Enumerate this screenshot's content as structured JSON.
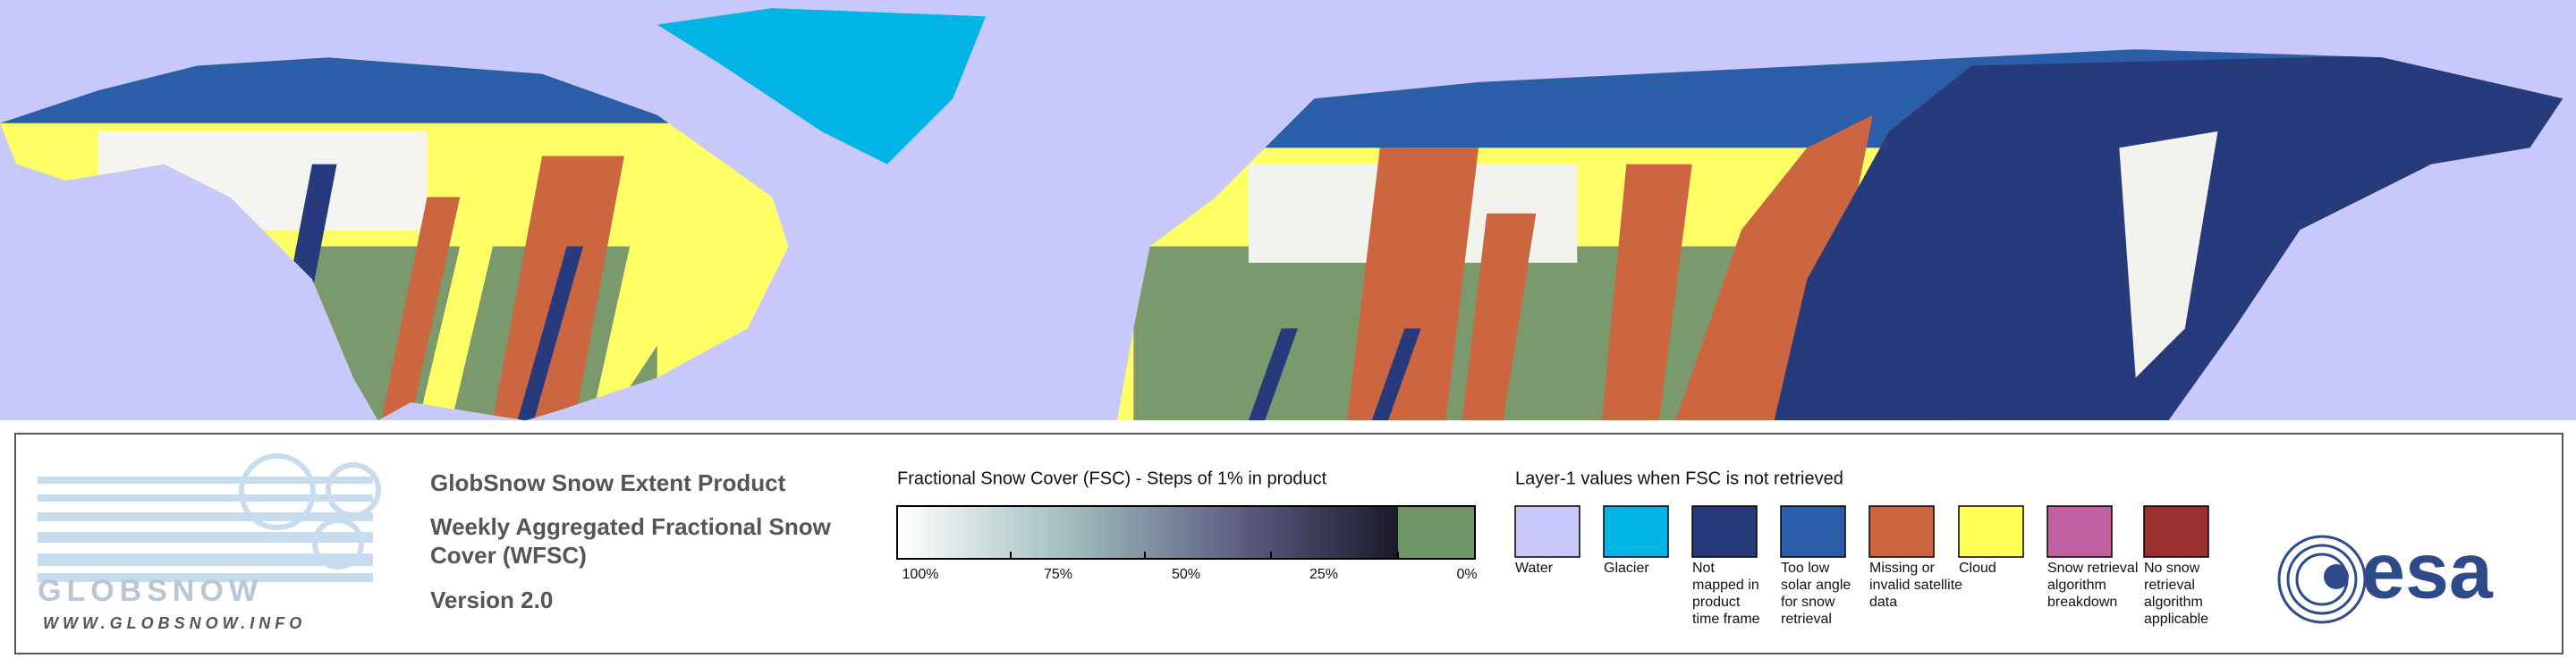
{
  "logo": {
    "name": "GLOBSNOW",
    "url": "WWW.GLOBSNOW.INFO"
  },
  "product": {
    "title": "GlobSnow Snow Extent Product",
    "subtitle_lines": [
      "Weekly Aggregated Fractional Snow",
      "Cover (WFSC)"
    ],
    "version": "Version 2.0"
  },
  "fsc_legend": {
    "title": "Fractional Snow Cover (FSC) - Steps of 1% in product",
    "tick_labels": [
      "100%",
      "75%",
      "50%",
      "25%",
      "0%"
    ]
  },
  "layer1_legend": {
    "title": "Layer-1 values when FSC is not retrieved",
    "items": [
      {
        "label_lines": [
          "Water"
        ],
        "color": "#c8c8fa"
      },
      {
        "label_lines": [
          "Glacier"
        ],
        "color": "#00b4e6"
      },
      {
        "label_lines": [
          "Not",
          "mapped in",
          "product",
          "time frame"
        ],
        "color": "#263a7c"
      },
      {
        "label_lines": [
          "Too low",
          "solar angle",
          "for snow",
          "retrieval"
        ],
        "color": "#2a5ea8"
      },
      {
        "label_lines": [
          "Missing or",
          "invalid satellite",
          "data"
        ],
        "color": "#cc6640"
      },
      {
        "label_lines": [
          "Cloud"
        ],
        "color": "#ffff55"
      },
      {
        "label_lines": [
          "Snow retrieval",
          "algorithm",
          "breakdown"
        ],
        "color": "#c060a0"
      },
      {
        "label_lines": [
          "No snow",
          "retrieval",
          "algorithm",
          "applicable"
        ],
        "color": "#9a3030"
      }
    ]
  },
  "agency": "esa"
}
